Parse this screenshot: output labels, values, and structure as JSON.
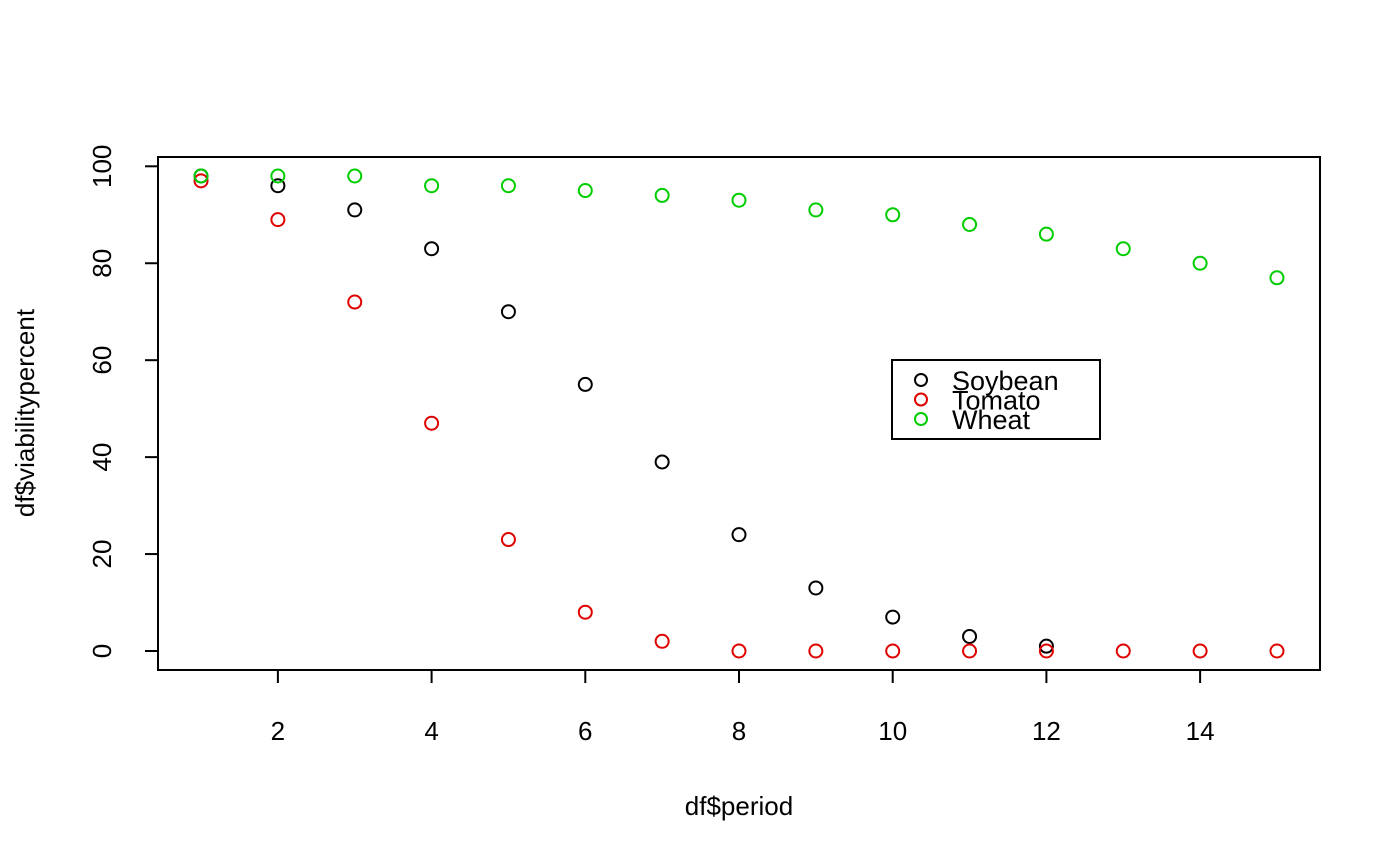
{
  "chart_data": {
    "type": "scatter",
    "title": "",
    "xlabel": "df$period",
    "ylabel": "df$viabilitypercent",
    "xlim": [
      0.44,
      15.56
    ],
    "ylim": [
      -3.92,
      101.92
    ],
    "x_ticks": [
      2,
      4,
      6,
      8,
      10,
      12,
      14
    ],
    "x_tick_labels": [
      "2",
      "4",
      "6",
      "8",
      "10",
      "12",
      "14"
    ],
    "y_ticks": [
      0,
      20,
      40,
      60,
      80,
      100
    ],
    "y_tick_labels": [
      "0",
      "20",
      "40",
      "60",
      "80",
      "100"
    ],
    "grid": false,
    "legend_position": "center-right",
    "x": [
      1,
      2,
      3,
      4,
      5,
      6,
      7,
      8,
      9,
      10,
      11,
      12,
      13,
      14,
      15
    ],
    "series": [
      {
        "name": "Soybean",
        "color": "#000000",
        "x": [
          1,
          2,
          3,
          4,
          5,
          6,
          7,
          8,
          9,
          10,
          11,
          12
        ],
        "values": [
          98,
          96,
          91,
          83,
          70,
          55,
          39,
          24,
          13,
          7,
          3,
          1
        ]
      },
      {
        "name": "Tomato",
        "color": "#DF0000",
        "x": [
          1,
          2,
          3,
          4,
          5,
          6,
          7,
          8,
          9,
          10,
          11,
          12,
          13,
          14,
          15
        ],
        "values": [
          97,
          89,
          72,
          47,
          23,
          8,
          2,
          0,
          0,
          0,
          0,
          0,
          0,
          0,
          0
        ]
      },
      {
        "name": "Wheat",
        "color": "#00CD00",
        "x": [
          1,
          2,
          3,
          4,
          5,
          6,
          7,
          8,
          9,
          10,
          11,
          12,
          13,
          14,
          15
        ],
        "values": [
          98,
          98,
          98,
          96,
          96,
          95,
          94,
          93,
          91,
          90,
          88,
          86,
          83,
          80,
          77
        ]
      }
    ]
  }
}
